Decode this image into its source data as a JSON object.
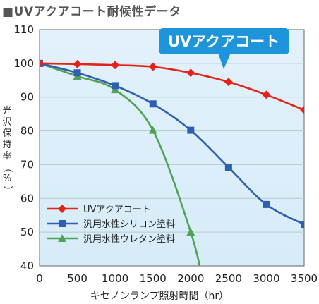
{
  "page": {
    "title": "■UVアクアコート耐候性データ"
  },
  "chart_data": {
    "type": "line",
    "title": "■UVアクアコート耐候性データ",
    "xlabel": "キセノンランプ照射時間（hr）",
    "ylabel": "光沢保持率（%）",
    "xlim": [
      0,
      3500
    ],
    "ylim": [
      40,
      110
    ],
    "xticks": [
      0,
      500,
      1000,
      1500,
      2000,
      2500,
      3000,
      3500
    ],
    "yticks": [
      40,
      50,
      60,
      70,
      80,
      90,
      100,
      110
    ],
    "grid": "horizontal",
    "legend": "bottom-left",
    "callout": "UVアクアコート",
    "series": [
      {
        "name": "UVアクアコート",
        "color": "#e2231a",
        "marker": "diamond",
        "x": [
          0,
          500,
          1000,
          1500,
          2000,
          2500,
          3000,
          3500
        ],
        "y": [
          100,
          99.8,
          99.5,
          99,
          97.2,
          94.5,
          90.7,
          86.2
        ]
      },
      {
        "name": "汎用水性シリコン塗料",
        "color": "#2e5fb0",
        "marker": "square",
        "x": [
          0,
          500,
          1000,
          1500,
          2000,
          2500,
          3000,
          3500
        ],
        "y": [
          100,
          97.2,
          93.4,
          88,
          80.2,
          69.2,
          58.2,
          52.3
        ]
      },
      {
        "name": "汎用水性ウレタン塗料",
        "color": "#4ea356",
        "marker": "triangle",
        "x": [
          0,
          500,
          1000,
          1500,
          2000
        ],
        "y": [
          100,
          96.2,
          92.2,
          80.2,
          50
        ]
      }
    ]
  }
}
